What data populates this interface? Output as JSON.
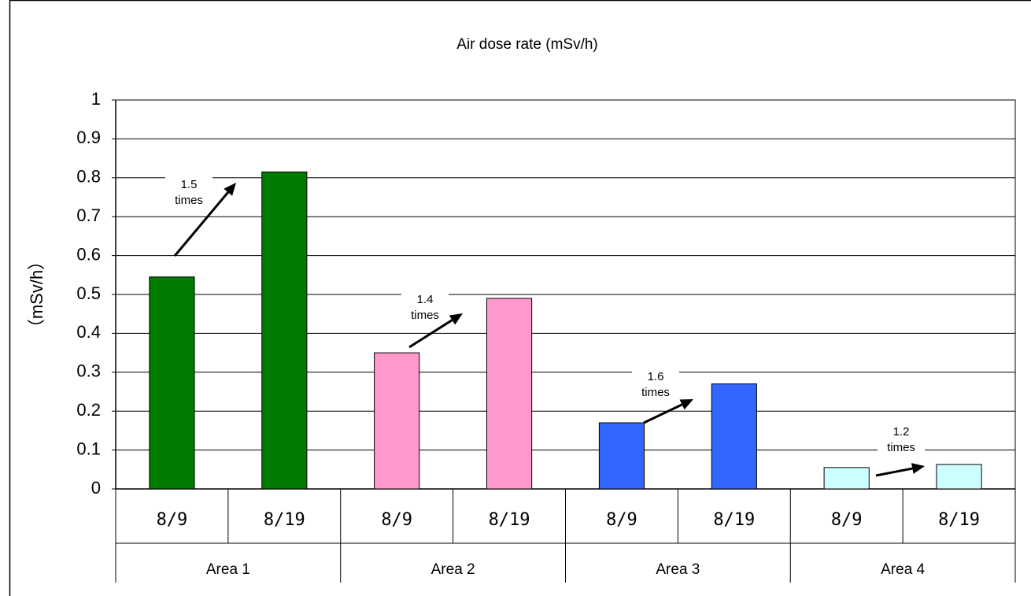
{
  "chart_data": {
    "type": "bar",
    "title": "Air dose rate (mSv/h)",
    "y_label": "（mSv/h）",
    "categories": [
      "8/9",
      "8/19",
      "8/9",
      "8/19",
      "8/9",
      "8/19",
      "8/9",
      "8/19"
    ],
    "groups": [
      "Area 1",
      "Area 2",
      "Area 3",
      "Area 4"
    ],
    "values": [
      0.545,
      0.815,
      0.35,
      0.49,
      0.17,
      0.27,
      0.055,
      0.063
    ],
    "colors": [
      "#007a00",
      "#007a00",
      "#ff99cc",
      "#ff99cc",
      "#3366ff",
      "#3366ff",
      "#ccffff",
      "#ccffff"
    ],
    "ylim": [
      0,
      1
    ],
    "yticks": [
      0,
      0.1,
      0.2,
      0.3,
      0.4,
      0.5,
      0.6,
      0.7,
      0.8,
      0.9,
      1
    ],
    "grid": true,
    "annotations": [
      [
        "1.5",
        "times"
      ],
      [
        "1.4",
        "times"
      ],
      [
        "1.6",
        "times"
      ],
      [
        "1.2",
        "times"
      ]
    ]
  }
}
